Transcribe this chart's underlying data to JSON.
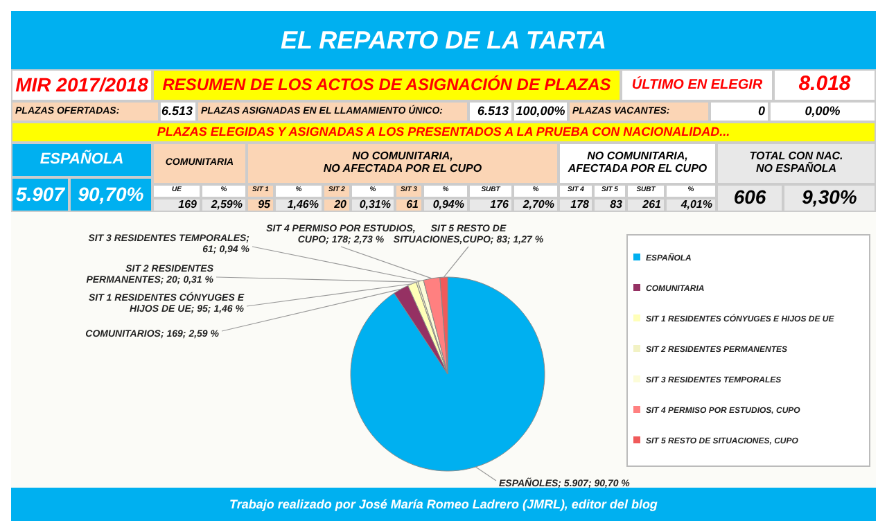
{
  "chart_data": [
    {
      "type": "other",
      "title": "EL REPARTO DE LA TARTA",
      "annotations": [
        "MIR 2017/2018",
        "RESUMEN DE LOS ACTOS DE ASIGNACIÓN DE PLAZAS",
        "ÚLTIMO EN ELEGIR",
        "8.018",
        "PLAZAS OFERTADAS:",
        "6.513",
        "PLAZAS ASIGNADAS EN EL LLAMAMIENTO ÚNICO:",
        "6.513",
        "100,00%",
        "PLAZAS VACANTES:",
        "0",
        "0,00%",
        "PLAZAS ELEGIDAS Y ASIGNADAS A LOS PRESENTADOS A LA PRUEBA CON NACIONALIDAD...",
        "ESPAÑOLA",
        "COMUNITARIA",
        "NO COMUNITARIA,\nNO AFECTADA POR EL CUPO",
        "NO COMUNITARIA,\nAFECTADA POR EL CUPO",
        "TOTAL CON NAC.\nNO ESPAÑOLA",
        "5.907",
        "90,70%",
        "UE",
        "%",
        "SIT 1",
        "%",
        "SIT 2",
        "%",
        "SIT 3",
        "%",
        "SUBT",
        "%",
        "SIT 4",
        "SIT 5",
        "SUBT",
        "%",
        "169",
        "2,59%",
        "95",
        "1,46%",
        "20",
        "0,31%",
        "61",
        "0,94%",
        "176",
        "2,70%",
        "178",
        "83",
        "261",
        "4,01%",
        "606",
        "9,30%"
      ]
    },
    {
      "type": "pie",
      "categories": [
        "ESPAÑOLA",
        "COMUNITARIA",
        "SIT 1 RESIDENTES CÓNYUGES E HIJOS DE UE",
        "SIT 2 RESIDENTES PERMANENTES",
        "SIT 3 RESIDENTES TEMPORALES",
        "SIT 4 PERMISO POR ESTUDIOS, CUPO",
        "SIT 5 RESTO DE SITUACIONES, CUPO"
      ],
      "values": [
        5907,
        169,
        95,
        20,
        61,
        178,
        83
      ],
      "colors": [
        "#00b0f0",
        "#953163",
        "#ffffb8",
        "#f2f2c4",
        "#fcfcd8",
        "#ff8080",
        "#f05a5a"
      ],
      "value_labels": [
        "ESPAÑOLES; 5.907; 90,70 %",
        "COMUNITARIOS; 169; 2,59 %",
        "SIT 1 RESIDENTES CÓNYUGES E\nHIJOS DE UE; 95; 1,46 %",
        "SIT 2 RESIDENTES\nPERMANENTES; 20; 0,31 %",
        "SIT 3 RESIDENTES TEMPORALES;\n61; 0,94 %",
        "SIT 4 PERMISO POR ESTUDIOS,\nCUPO; 178; 2,73 %",
        "SIT 5 RESTO DE\nSITUACIONES,CUPO; 83; 1,27 %"
      ],
      "legend": "right",
      "annotations": [
        "Trabajo realizado por José María Romeo Ladrero (JMRL), editor del blog"
      ]
    }
  ]
}
